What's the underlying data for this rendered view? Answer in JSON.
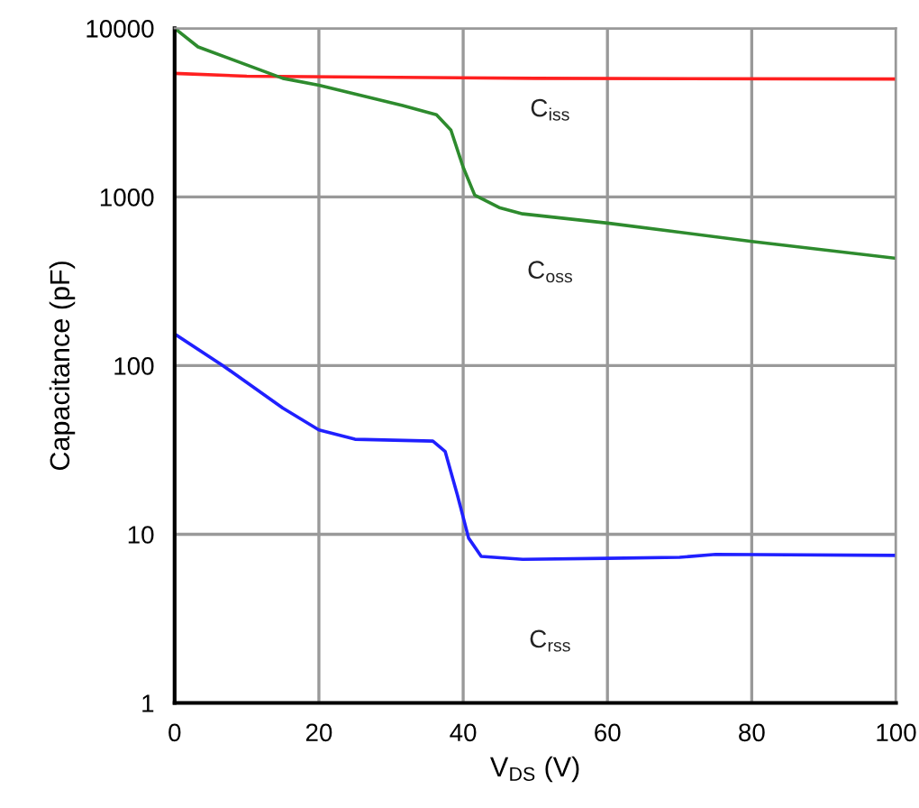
{
  "chart_data": {
    "type": "line",
    "xlabel": "V$_{DS}$ (V)",
    "ylabel": "Capacitance (pF)",
    "log": "y",
    "grid": true,
    "marker": "none",
    "line_style": "solid",
    "xlim": [
      0,
      100
    ],
    "xticks": [
      0,
      20,
      40,
      60,
      80,
      100
    ],
    "ylim": [
      1,
      10000
    ],
    "yticks": [
      1,
      10,
      100,
      1000,
      10000
    ],
    "series": [
      {
        "name": "C$_{iss}$",
        "color": "#ff2020",
        "x": [
          0,
          10,
          50,
          100
        ],
        "values": [
          5400,
          5200,
          5050,
          5000
        ]
      },
      {
        "name": "C$_{oss}$",
        "color": "#2e8b2e",
        "x": [
          0,
          3.25,
          15,
          20,
          31.6,
          36.3,
          38.3,
          40,
          41.6,
          45,
          48.25,
          60,
          80,
          100
        ],
        "values": [
          10000,
          7760,
          5050,
          4600,
          3480,
          3070,
          2490,
          1500,
          1025,
          865,
          794,
          700,
          545,
          433
        ]
      },
      {
        "name": "C$_{rss}$",
        "color": "#2020ff",
        "x": [
          0,
          6.7,
          15,
          20,
          25,
          35.8,
          37.5,
          39.2,
          40.75,
          42.5,
          48.25,
          60,
          70,
          75,
          100
        ],
        "values": [
          154,
          100,
          56,
          41.6,
          36.6,
          35.7,
          31,
          17.1,
          9.5,
          7.4,
          7.1,
          7.2,
          7.3,
          7.6,
          7.5
        ]
      }
    ]
  }
}
